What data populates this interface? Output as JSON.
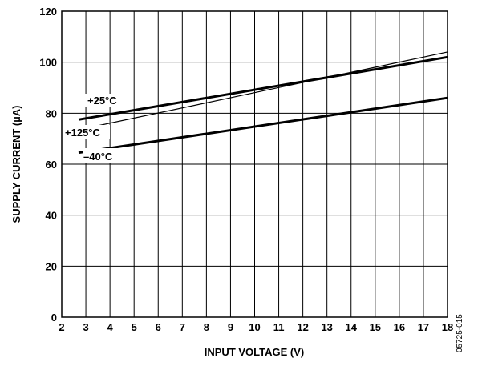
{
  "chart_data": {
    "type": "line",
    "xlabel": "INPUT VOLTAGE (V)",
    "ylabel": "SUPPLY CURRENT (µA)",
    "xlim": [
      2,
      18
    ],
    "ylim": [
      0,
      120
    ],
    "x_ticks": [
      "2",
      "3",
      "4",
      "5",
      "6",
      "7",
      "8",
      "9",
      "10",
      "11",
      "12",
      "13",
      "14",
      "15",
      "16",
      "17",
      "18"
    ],
    "y_ticks": [
      "0",
      "20",
      "40",
      "60",
      "80",
      "100",
      "120"
    ],
    "grid": true,
    "series": [
      {
        "name": "+25°C",
        "x": [
          2.7,
          18
        ],
        "y": [
          77.5,
          102
        ],
        "line_weight": "thick"
      },
      {
        "name": "+125°C",
        "x": [
          2.7,
          18
        ],
        "y": [
          73.5,
          104
        ],
        "line_weight": "thin"
      },
      {
        "name": "–40°C",
        "x": [
          2.7,
          18
        ],
        "y": [
          64.5,
          86
        ],
        "line_weight": "thick"
      }
    ]
  },
  "figure_id": "05725-015"
}
